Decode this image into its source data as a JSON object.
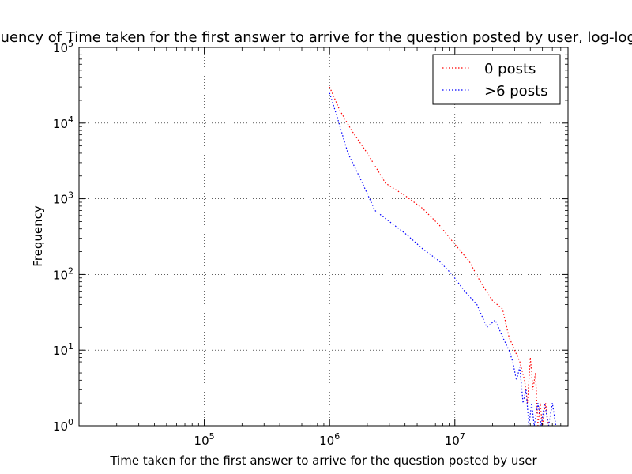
{
  "chart_data": {
    "type": "line",
    "title": "Frequency of Time taken for the first answer to arrive for the question posted by user, log-log scale",
    "xlabel": "Time taken for the first answer to arrive for the question posted by user",
    "ylabel": "Frequency",
    "xscale": "log",
    "yscale": "log",
    "xlim": [
      10000,
      80000000
    ],
    "ylim": [
      1,
      100000
    ],
    "grid": true,
    "legend_position": "top-right",
    "x_ticks": [
      {
        "value": 100000,
        "base": "10",
        "exp": "5"
      },
      {
        "value": 1000000,
        "base": "10",
        "exp": "6"
      },
      {
        "value": 10000000,
        "base": "10",
        "exp": "7"
      }
    ],
    "y_ticks": [
      {
        "value": 1,
        "base": "10",
        "exp": "0"
      },
      {
        "value": 10,
        "base": "10",
        "exp": "1"
      },
      {
        "value": 100,
        "base": "10",
        "exp": "2"
      },
      {
        "value": 1000,
        "base": "10",
        "exp": "3"
      },
      {
        "value": 10000,
        "base": "10",
        "exp": "4"
      },
      {
        "value": 100000,
        "base": "10",
        "exp": "5"
      }
    ],
    "series": [
      {
        "name": "0 posts",
        "color": "#ff0000",
        "points": [
          [
            1000000,
            30000
          ],
          [
            1200000,
            15000
          ],
          [
            1500000,
            8000
          ],
          [
            2000000,
            4000
          ],
          [
            2800000,
            1600
          ],
          [
            4000000,
            1100
          ],
          [
            5500000,
            750
          ],
          [
            7500000,
            450
          ],
          [
            10000000,
            250
          ],
          [
            13000000,
            150
          ],
          [
            16000000,
            80
          ],
          [
            20000000,
            45
          ],
          [
            24000000,
            35
          ],
          [
            27000000,
            15
          ],
          [
            30000000,
            10
          ],
          [
            33000000,
            7
          ],
          [
            36000000,
            4
          ],
          [
            38000000,
            2
          ],
          [
            40000000,
            8
          ],
          [
            42000000,
            3
          ],
          [
            44000000,
            5
          ],
          [
            46000000,
            1
          ],
          [
            48000000,
            2
          ],
          [
            50000000,
            1
          ],
          [
            53000000,
            2
          ],
          [
            56000000,
            1
          ]
        ]
      },
      {
        "name": ">6 posts",
        "color": "#0000ff",
        "points": [
          [
            1000000,
            25000
          ],
          [
            1150000,
            12000
          ],
          [
            1400000,
            4000
          ],
          [
            1800000,
            1700
          ],
          [
            2300000,
            700
          ],
          [
            3000000,
            500
          ],
          [
            4000000,
            350
          ],
          [
            5500000,
            220
          ],
          [
            7500000,
            150
          ],
          [
            9500000,
            100
          ],
          [
            12000000,
            60
          ],
          [
            15000000,
            40
          ],
          [
            18000000,
            20
          ],
          [
            21000000,
            25
          ],
          [
            24000000,
            15
          ],
          [
            27000000,
            10
          ],
          [
            29000000,
            7
          ],
          [
            31000000,
            4
          ],
          [
            33000000,
            6
          ],
          [
            35000000,
            2
          ],
          [
            37000000,
            3
          ],
          [
            39000000,
            1
          ],
          [
            41000000,
            2
          ],
          [
            43000000,
            1
          ],
          [
            46000000,
            2
          ],
          [
            49000000,
            1
          ],
          [
            52000000,
            2
          ],
          [
            56000000,
            1
          ],
          [
            60000000,
            2
          ],
          [
            64000000,
            1
          ]
        ]
      }
    ]
  }
}
